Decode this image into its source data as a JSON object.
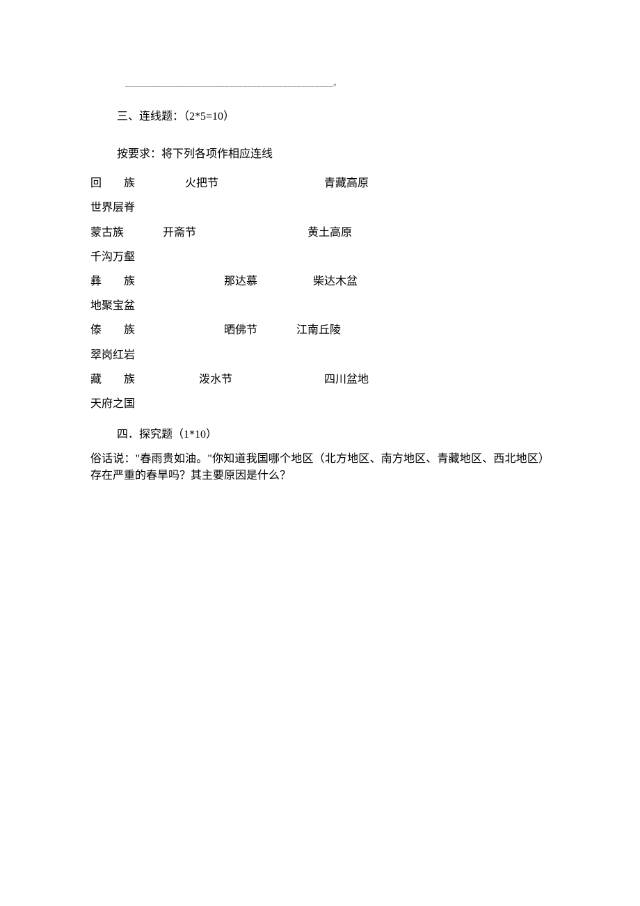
{
  "blank_trail": "______________________________________________。",
  "section3": {
    "header": "三、连线题：（2*5=10）",
    "instruction": "按要求：将下列各项作相应连线",
    "rows": [
      {
        "col1": "回　　族",
        "col2": "火把节",
        "col3": "青藏高原",
        "wrap": "世界层脊",
        "c2_pad": 18,
        "c3_pad": 38
      },
      {
        "col1": "蒙古族",
        "col2": "开斋节",
        "col3": "黄土高原",
        "wrap": "千沟万壑",
        "c2_pad": 14,
        "c3_pad": 40
      },
      {
        "col1": "彝　　族",
        "col2": "那达慕",
        "col3": "柴达木盆",
        "wrap": "地聚宝盆",
        "c2_pad": 32,
        "c3_pad": 20
      },
      {
        "col1": "傣　　族",
        "col2": "晒佛节",
        "col3": "江南丘陵",
        "wrap": "翠岗红岩",
        "c2_pad": 32,
        "c3_pad": 14
      },
      {
        "col1": "藏　　族",
        "col2": "泼水节",
        "col3": "四川盆地",
        "wrap": "天府之国",
        "c2_pad": 23,
        "c3_pad": 33
      }
    ]
  },
  "section4": {
    "header": "四．探究题（1*10）",
    "question": "俗话说：\"春雨贵如油。\"你知道我国哪个地区（北方地区、南方地区、青藏地区、西北地区）存在严重的春旱吗？其主要原因是什么？"
  }
}
